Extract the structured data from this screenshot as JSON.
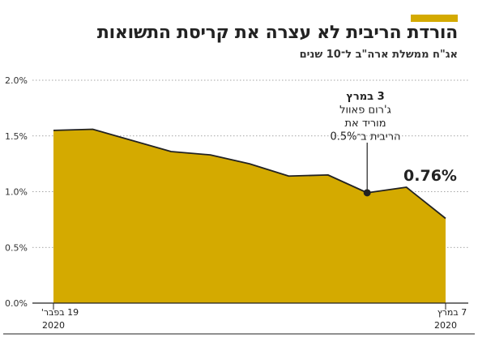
{
  "header": {
    "title": "הורדת הריבית לא עצרה את קריסת התשואות",
    "subtitle": "אג\"ח ממשלת ארה\"ב ל־10 שנים"
  },
  "colors": {
    "accent": "#d4aa00",
    "area_fill": "#d4aa00",
    "line": "#222222",
    "grid": "#888888"
  },
  "chart_data": {
    "type": "area",
    "x": [
      "19 בפבר'",
      "",
      "",
      "",
      "",
      "",
      "",
      "",
      "3 במרץ",
      "",
      "7 במרץ"
    ],
    "values": [
      1.55,
      1.56,
      1.46,
      1.36,
      1.33,
      1.25,
      1.14,
      1.15,
      0.99,
      1.04,
      0.76
    ],
    "ylim": [
      0,
      2.0
    ],
    "y_ticks": [
      0,
      0.5,
      1.0,
      1.5,
      2.0
    ],
    "y_tick_labels": [
      "0.0%",
      "0.5%",
      "1.0%",
      "1.5%",
      "2.0%"
    ],
    "x_labels": [
      {
        "index": 0,
        "line1": "19 בפבר'",
        "line2": "2020"
      },
      {
        "index": 10,
        "line1": "7 במרץ",
        "line2": "2020"
      }
    ],
    "annotation": {
      "index": 8,
      "lines": [
        "3 במרץ",
        "ג'רום פאוול",
        "מוריד את",
        "הריבית ב־0.5%"
      ]
    },
    "end_label": "0.76%",
    "grid": true
  }
}
